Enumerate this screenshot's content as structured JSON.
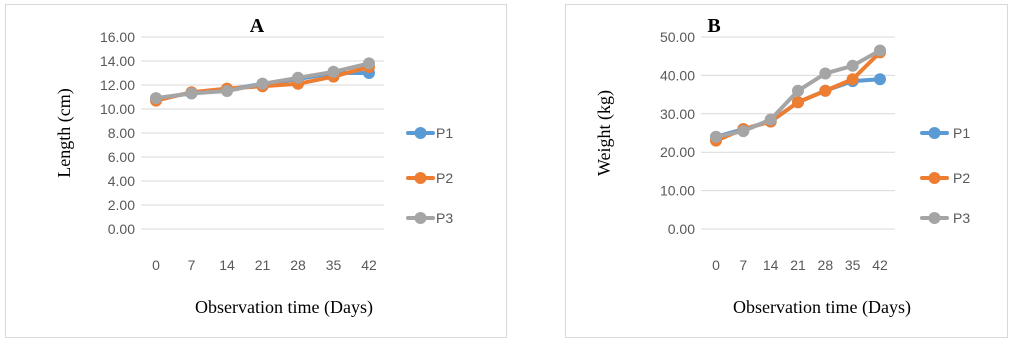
{
  "chart_data": [
    {
      "type": "line",
      "panel_label": "A",
      "xlabel": "Observation time (Days)",
      "ylabel": "Length (cm)",
      "categories": [
        "0",
        "7",
        "14",
        "21",
        "28",
        "35",
        "42"
      ],
      "ylim": [
        0,
        16
      ],
      "yticks": [
        "0.00",
        "2.00",
        "4.00",
        "6.00",
        "8.00",
        "10.00",
        "12.00",
        "14.00",
        "16.00"
      ],
      "grid": true,
      "legend_position": "right",
      "series": [
        {
          "name": "P1",
          "color": "#5b9bd5",
          "values": [
            10.9,
            11.3,
            11.6,
            12.1,
            12.5,
            13.0,
            13.0
          ]
        },
        {
          "name": "P2",
          "color": "#ed7d31",
          "values": [
            10.7,
            11.4,
            11.7,
            11.9,
            12.1,
            12.7,
            13.5
          ]
        },
        {
          "name": "P3",
          "color": "#a5a5a5",
          "values": [
            10.9,
            11.3,
            11.5,
            12.1,
            12.6,
            13.1,
            13.8
          ]
        }
      ]
    },
    {
      "type": "line",
      "panel_label": "B",
      "xlabel": "Observation time (Days)",
      "ylabel": "Weight  (kg)",
      "categories": [
        "0",
        "7",
        "14",
        "21",
        "28",
        "35",
        "42"
      ],
      "ylim": [
        0,
        50
      ],
      "yticks": [
        "0.00",
        "10.00",
        "20.00",
        "30.00",
        "40.00",
        "50.00"
      ],
      "grid": true,
      "legend_position": "right",
      "series": [
        {
          "name": "P1",
          "color": "#5b9bd5",
          "values": [
            24.0,
            26.0,
            28.0,
            33.0,
            36.0,
            38.5,
            39.0
          ]
        },
        {
          "name": "P2",
          "color": "#ed7d31",
          "values": [
            23.0,
            26.0,
            28.0,
            33.0,
            36.0,
            39.0,
            46.0
          ]
        },
        {
          "name": "P3",
          "color": "#a5a5a5",
          "values": [
            24.0,
            25.5,
            28.5,
            36.0,
            40.5,
            42.5,
            46.5
          ]
        }
      ]
    }
  ]
}
